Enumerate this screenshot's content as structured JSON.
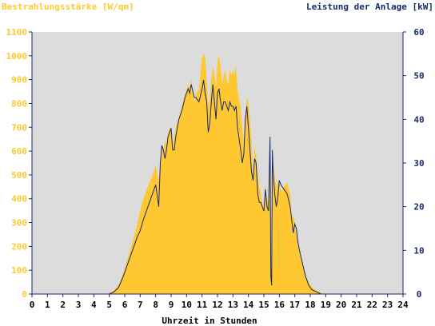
{
  "chart_data": {
    "type": "area",
    "ylabel_left": "Bestrahlungsstärke [W/qm]",
    "ylabel_right": "Leistung der Anlage [kW]",
    "xlabel": "Uhrzeit in Stunden",
    "xlim": [
      0,
      24
    ],
    "ylim_left": [
      0,
      1100
    ],
    "ylim_right": [
      0,
      60
    ],
    "x_ticks": [
      "0",
      "1",
      "2",
      "3",
      "4",
      "5",
      "6",
      "7",
      "8",
      "9",
      "10",
      "11",
      "12",
      "13",
      "14",
      "15",
      "16",
      "17",
      "18",
      "19",
      "20",
      "21",
      "22",
      "23",
      "24"
    ],
    "y_ticks_left": [
      "0",
      "100",
      "200",
      "300",
      "400",
      "500",
      "600",
      "700",
      "800",
      "900",
      "1000",
      "1100"
    ],
    "y_ticks_right": [
      "0",
      "10",
      "20",
      "30",
      "40",
      "50",
      "60"
    ],
    "grid": false,
    "colors": {
      "irradiance_fill": "#ffc830",
      "power_line": "#1a2a6c",
      "plot_bg": "#dcdcdc"
    },
    "series": [
      {
        "axis": "left",
        "x": [
          0,
          4.9,
          5.3,
          5.6,
          5.9,
          6.2,
          6.5,
          6.8,
          7.0,
          7.2,
          7.5,
          7.8,
          8.0,
          8.2,
          8.3,
          8.4,
          8.5,
          8.6,
          8.7,
          8.8,
          9.0,
          9.1,
          9.2,
          9.3,
          9.5,
          9.7,
          9.9,
          10.1,
          10.2,
          10.3,
          10.5,
          10.6,
          10.8,
          11.0,
          11.1,
          11.2,
          11.3,
          11.4,
          11.5,
          11.6,
          11.7,
          11.8,
          11.9,
          12.0,
          12.1,
          12.2,
          12.3,
          12.4,
          12.5,
          12.6,
          12.7,
          12.8,
          12.9,
          13.0,
          13.1,
          13.2,
          13.3,
          13.5,
          13.6,
          13.7,
          13.8,
          13.9,
          14.0,
          14.1,
          14.2,
          14.3,
          14.4,
          14.5,
          14.6,
          14.7,
          14.8,
          14.9,
          15.0,
          15.1,
          15.2,
          15.3,
          15.4,
          15.45,
          15.5,
          15.55,
          15.6,
          15.7,
          15.8,
          15.9,
          16.0,
          16.1,
          16.3,
          16.5,
          16.7,
          16.8,
          16.9,
          17.0,
          17.1,
          17.2,
          17.3,
          17.5,
          17.7,
          17.9,
          18.1,
          18.4,
          18.7,
          19.0,
          19.3,
          19.7,
          20.0,
          24
        ],
        "values": [
          0,
          0,
          15,
          40,
          90,
          150,
          220,
          290,
          350,
          400,
          450,
          500,
          540,
          470,
          560,
          610,
          600,
          640,
          630,
          680,
          700,
          620,
          660,
          700,
          740,
          790,
          840,
          880,
          860,
          900,
          800,
          840,
          860,
          990,
          1010,
          990,
          900,
          780,
          820,
          900,
          960,
          920,
          870,
          980,
          1000,
          950,
          880,
          920,
          940,
          900,
          880,
          950,
          920,
          940,
          920,
          960,
          850,
          780,
          700,
          640,
          740,
          830,
          800,
          730,
          650,
          500,
          620,
          580,
          500,
          450,
          430,
          380,
          350,
          460,
          400,
          380,
          700,
          80,
          60,
          600,
          550,
          500,
          440,
          470,
          480,
          430,
          450,
          470,
          420,
          320,
          330,
          300,
          250,
          220,
          180,
          130,
          80,
          50,
          30,
          15,
          5,
          0,
          0,
          0,
          0,
          0
        ]
      },
      {
        "axis": "right",
        "x": [
          0,
          5.0,
          5.3,
          5.6,
          5.9,
          6.2,
          6.5,
          6.8,
          7.0,
          7.2,
          7.5,
          7.8,
          8.0,
          8.2,
          8.3,
          8.4,
          8.5,
          8.6,
          8.7,
          8.8,
          9.0,
          9.1,
          9.2,
          9.3,
          9.5,
          9.7,
          9.9,
          10.1,
          10.2,
          10.3,
          10.5,
          10.6,
          10.8,
          11.0,
          11.1,
          11.2,
          11.3,
          11.4,
          11.5,
          11.6,
          11.7,
          11.8,
          11.9,
          12.0,
          12.1,
          12.2,
          12.3,
          12.4,
          12.5,
          12.6,
          12.7,
          12.8,
          12.9,
          13.0,
          13.1,
          13.2,
          13.3,
          13.5,
          13.6,
          13.7,
          13.8,
          13.9,
          14.0,
          14.1,
          14.2,
          14.3,
          14.4,
          14.5,
          14.6,
          14.7,
          14.8,
          14.9,
          15.0,
          15.1,
          15.2,
          15.3,
          15.4,
          15.45,
          15.5,
          15.55,
          15.6,
          15.7,
          15.8,
          15.9,
          16.0,
          16.1,
          16.3,
          16.5,
          16.7,
          16.8,
          16.9,
          17.0,
          17.1,
          17.2,
          17.3,
          17.5,
          17.7,
          17.9,
          18.1,
          18.4,
          18.7,
          19.0,
          19.3,
          19.7,
          20.0,
          24
        ],
        "values": [
          0,
          0,
          0.5,
          1.5,
          4,
          7,
          10,
          13,
          14.5,
          17,
          20,
          23,
          25,
          20,
          30,
          34,
          33,
          31,
          33,
          36,
          38,
          33,
          33,
          36,
          40,
          42,
          45,
          47,
          46,
          48,
          45,
          45,
          44,
          47,
          49,
          46,
          44,
          37,
          39,
          44,
          48,
          44,
          40,
          46,
          47,
          44,
          42,
          44,
          44,
          43,
          42,
          44,
          43,
          43,
          42,
          43,
          38,
          33,
          30,
          32,
          40,
          43,
          38,
          33,
          28,
          26,
          31,
          30,
          23,
          21,
          21,
          20,
          19,
          24,
          20,
          19,
          36,
          4,
          2,
          33,
          28,
          23,
          20,
          22,
          26,
          25,
          24,
          23,
          20,
          17,
          14,
          16,
          15,
          12,
          10,
          7,
          4,
          2,
          1,
          0.5,
          0,
          0,
          0,
          0,
          0,
          0
        ]
      }
    ]
  }
}
